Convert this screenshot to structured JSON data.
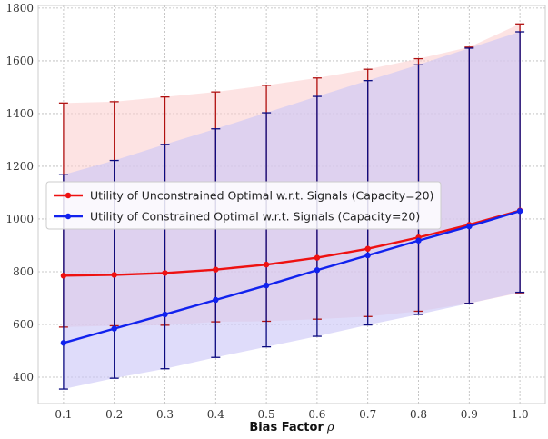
{
  "chart_data": {
    "type": "line",
    "title": "",
    "xlabel": "Bias Factor",
    "xlabel_symbol": "ρ",
    "ylabel": "",
    "x": [
      0.1,
      0.2,
      0.3,
      0.4,
      0.5,
      0.6,
      0.7,
      0.8,
      0.9,
      1.0
    ],
    "x_tick_labels": [
      "0.1",
      "0.2",
      "0.3",
      "0.4",
      "0.5",
      "0.6",
      "0.7",
      "0.8",
      "0.9",
      "1.0"
    ],
    "y_ticks": [
      400,
      600,
      800,
      1000,
      1200,
      1400,
      1600,
      1800
    ],
    "y_tick_labels": [
      "400",
      "600",
      "800",
      "1000",
      "1200",
      "1400",
      "1600",
      "1800"
    ],
    "xlim": [
      0.05,
      1.05
    ],
    "ylim": [
      300,
      1810
    ],
    "grid": true,
    "legend_position": "center-left",
    "series": [
      {
        "name": "Utility of Unconstrained Optimal w.r.t. Signals (Capacity=20)",
        "color": "#ee1111",
        "band_color": "#fbd0d0",
        "values": [
          785,
          788,
          795,
          808,
          827,
          853,
          887,
          930,
          978,
          1032
        ],
        "upper": [
          1440,
          1445,
          1463,
          1482,
          1507,
          1535,
          1568,
          1608,
          1652,
          1740
        ],
        "lower": [
          590,
          595,
          597,
          610,
          612,
          620,
          630,
          650,
          680,
          720
        ]
      },
      {
        "name": "Utility of Constrained Optimal w.r.t. Signals (Capacity=20)",
        "color": "#1122ee",
        "band_color": "#c9c5f7",
        "values": [
          530,
          584,
          638,
          693,
          748,
          806,
          862,
          918,
          972,
          1030
        ],
        "upper": [
          1168,
          1222,
          1283,
          1342,
          1403,
          1465,
          1525,
          1585,
          1648,
          1710
        ],
        "lower": [
          355,
          396,
          432,
          475,
          515,
          555,
          598,
          638,
          680,
          722
        ]
      }
    ]
  }
}
